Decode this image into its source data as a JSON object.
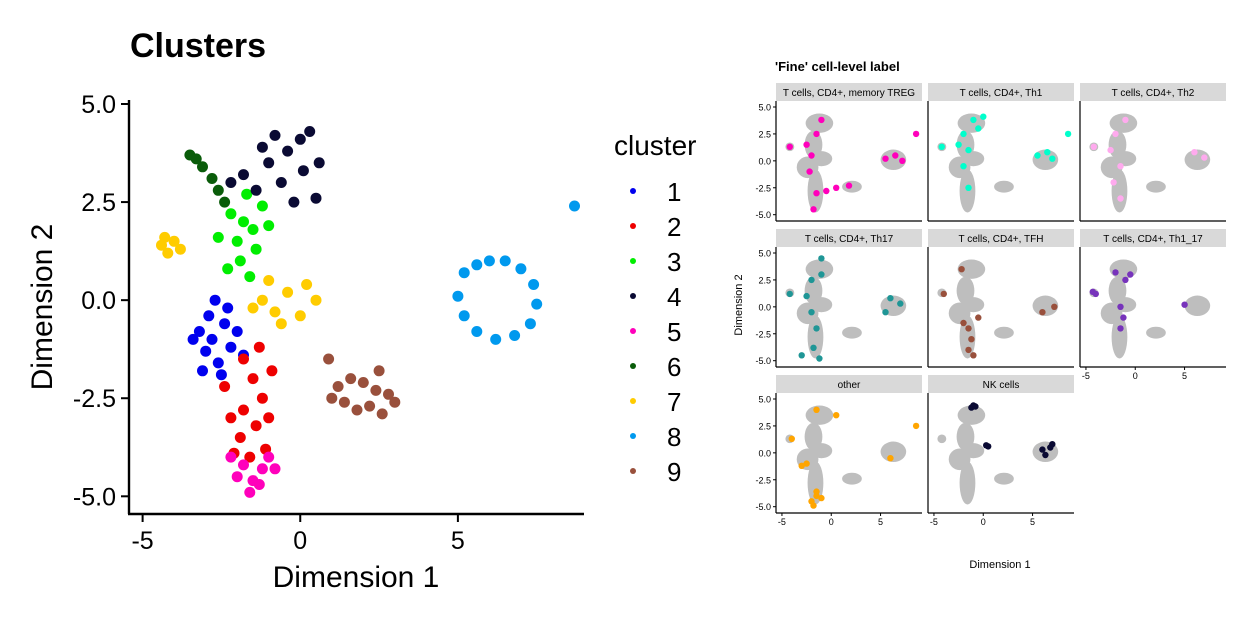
{
  "chart_data": [
    {
      "type": "scatter",
      "title": "Clusters",
      "xlabel": "Dimension 1",
      "ylabel": "Dimension 2",
      "xlim": [
        -5.4,
        9.0
      ],
      "ylim": [
        -5.4,
        5.0
      ],
      "x_ticks": [
        -5,
        0,
        5
      ],
      "x_tick_labels": [
        "-5",
        "0",
        "5"
      ],
      "y_ticks": [
        -5.0,
        -2.5,
        0.0,
        2.5,
        5.0
      ],
      "y_tick_labels": [
        "-5.0",
        "-2.5",
        "0.0",
        "2.5",
        "5.0"
      ],
      "grid": false,
      "legend": {
        "title": "cluster",
        "placement": "right"
      },
      "series": [
        {
          "name": "1",
          "color": "#0000ee",
          "points": [
            [
              -3.2,
              -0.8
            ],
            [
              -2.8,
              -1.0
            ],
            [
              -2.4,
              -0.6
            ],
            [
              -3.0,
              -1.3
            ],
            [
              -2.6,
              -1.6
            ],
            [
              -2.2,
              -1.2
            ],
            [
              -2.9,
              -0.4
            ],
            [
              -2.3,
              -0.2
            ],
            [
              -3.4,
              -1.0
            ],
            [
              -2.0,
              -0.8
            ],
            [
              -2.5,
              -1.9
            ],
            [
              -3.1,
              -1.8
            ],
            [
              -1.8,
              -1.4
            ],
            [
              -2.7,
              0.0
            ]
          ]
        },
        {
          "name": "2",
          "color": "#ee0000",
          "points": [
            [
              -1.8,
              -1.5
            ],
            [
              -1.5,
              -2.0
            ],
            [
              -1.2,
              -2.5
            ],
            [
              -1.8,
              -2.8
            ],
            [
              -1.4,
              -3.2
            ],
            [
              -1.9,
              -3.5
            ],
            [
              -1.1,
              -3.8
            ],
            [
              -2.2,
              -3.0
            ],
            [
              -1.6,
              -4.0
            ],
            [
              -0.9,
              -1.8
            ],
            [
              -2.4,
              -2.2
            ],
            [
              -1.0,
              -3.0
            ],
            [
              -2.1,
              -3.9
            ],
            [
              -1.3,
              -1.2
            ]
          ]
        },
        {
          "name": "3",
          "color": "#00ee00",
          "points": [
            [
              -2.2,
              2.2
            ],
            [
              -1.8,
              2.0
            ],
            [
              -2.0,
              1.5
            ],
            [
              -1.5,
              1.8
            ],
            [
              -1.9,
              1.0
            ],
            [
              -1.4,
              1.3
            ],
            [
              -2.3,
              0.8
            ],
            [
              -1.6,
              0.6
            ],
            [
              -1.2,
              2.4
            ],
            [
              -2.6,
              1.6
            ],
            [
              -1.0,
              1.9
            ],
            [
              -1.7,
              2.7
            ]
          ]
        },
        {
          "name": "4",
          "color": "#0a0a33",
          "points": [
            [
              -1.8,
              3.2
            ],
            [
              -1.0,
              3.5
            ],
            [
              -0.4,
              3.8
            ],
            [
              0.0,
              4.1
            ],
            [
              0.3,
              4.3
            ],
            [
              -0.6,
              3.0
            ],
            [
              -1.4,
              2.8
            ],
            [
              0.1,
              3.3
            ],
            [
              0.5,
              2.6
            ],
            [
              -1.2,
              3.9
            ],
            [
              -0.2,
              2.5
            ],
            [
              -2.2,
              3.0
            ],
            [
              0.6,
              3.5
            ],
            [
              -0.8,
              4.2
            ]
          ]
        },
        {
          "name": "5",
          "color": "#ff00bb",
          "points": [
            [
              -1.8,
              -4.2
            ],
            [
              -1.5,
              -4.6
            ],
            [
              -1.2,
              -4.3
            ],
            [
              -2.0,
              -4.5
            ],
            [
              -1.6,
              -4.9
            ],
            [
              -1.0,
              -4.0
            ],
            [
              -2.2,
              -4.0
            ],
            [
              -1.3,
              -4.7
            ],
            [
              -0.8,
              -4.3
            ]
          ]
        },
        {
          "name": "6",
          "color": "#0a5c0a",
          "points": [
            [
              -3.5,
              3.7
            ],
            [
              -3.1,
              3.4
            ],
            [
              -2.8,
              3.1
            ],
            [
              -2.6,
              2.8
            ],
            [
              -3.3,
              3.6
            ],
            [
              -2.4,
              2.5
            ]
          ]
        },
        {
          "name": "7",
          "color": "#ffcc00",
          "points": [
            [
              -4.4,
              1.4
            ],
            [
              -4.2,
              1.2
            ],
            [
              -4.0,
              1.5
            ],
            [
              -3.8,
              1.3
            ],
            [
              -4.3,
              1.6
            ],
            [
              -1.2,
              0.0
            ],
            [
              -0.8,
              -0.3
            ],
            [
              -0.4,
              0.2
            ],
            [
              0.2,
              0.4
            ],
            [
              -1.5,
              -0.2
            ],
            [
              -0.6,
              -0.6
            ],
            [
              0.0,
              -0.4
            ],
            [
              0.5,
              0.0
            ],
            [
              -1.0,
              0.5
            ]
          ]
        },
        {
          "name": "8",
          "color": "#0099ee",
          "points": [
            [
              5.2,
              0.7
            ],
            [
              5.6,
              0.9
            ],
            [
              6.0,
              1.0
            ],
            [
              6.5,
              1.0
            ],
            [
              7.0,
              0.8
            ],
            [
              7.4,
              0.4
            ],
            [
              7.5,
              -0.1
            ],
            [
              7.3,
              -0.6
            ],
            [
              6.8,
              -0.9
            ],
            [
              6.2,
              -1.0
            ],
            [
              5.6,
              -0.8
            ],
            [
              5.2,
              -0.4
            ],
            [
              5.0,
              0.1
            ],
            [
              8.7,
              2.4
            ]
          ]
        },
        {
          "name": "9",
          "color": "#99503c",
          "points": [
            [
              1.2,
              -2.2
            ],
            [
              1.6,
              -2.0
            ],
            [
              2.0,
              -2.1
            ],
            [
              2.4,
              -2.3
            ],
            [
              2.8,
              -2.4
            ],
            [
              1.4,
              -2.6
            ],
            [
              1.8,
              -2.8
            ],
            [
              2.2,
              -2.7
            ],
            [
              2.6,
              -2.9
            ],
            [
              3.0,
              -2.6
            ],
            [
              0.9,
              -1.5
            ],
            [
              1.0,
              -2.5
            ],
            [
              2.5,
              -1.8
            ]
          ]
        }
      ]
    },
    {
      "type": "scatter",
      "title": "'Fine' cell-level label",
      "xlabel": "Dimension 1",
      "ylabel": "Dimension 2",
      "xlim": [
        -5.4,
        9.0
      ],
      "ylim": [
        -5.4,
        5.0
      ],
      "x_ticks": [
        -5,
        0,
        5
      ],
      "x_tick_labels": [
        "-5",
        "0",
        "5"
      ],
      "y_ticks": [
        -5.0,
        -2.5,
        0.0,
        2.5,
        5.0
      ],
      "y_tick_labels": [
        "-5.0",
        "-2.5",
        "0.0",
        "2.5",
        "5.0"
      ],
      "background_color": "#bebebe",
      "panels": [
        {
          "label": "T cells, CD4+, memory TREG",
          "color": "#ff00bb",
          "points": [
            [
              -2.5,
              1.5
            ],
            [
              -2.0,
              0.5
            ],
            [
              -1.5,
              2.5
            ],
            [
              -1.0,
              3.8
            ],
            [
              -2.2,
              -1.0
            ],
            [
              -1.5,
              -3.0
            ],
            [
              -1.8,
              -4.5
            ],
            [
              -4.2,
              1.3
            ],
            [
              -0.5,
              -2.8
            ],
            [
              0.5,
              -2.5
            ],
            [
              1.8,
              -2.3
            ],
            [
              5.5,
              0.2
            ],
            [
              6.5,
              0.5
            ],
            [
              7.2,
              0.0
            ],
            [
              8.6,
              2.5
            ]
          ]
        },
        {
          "label": "T cells, CD4+, Th1",
          "color": "#00ffcc",
          "points": [
            [
              -2.0,
              2.5
            ],
            [
              -1.0,
              3.8
            ],
            [
              0.0,
              4.1
            ],
            [
              -2.5,
              1.5
            ],
            [
              -1.5,
              1.0
            ],
            [
              -0.5,
              3.0
            ],
            [
              -4.2,
              1.3
            ],
            [
              -2.0,
              -0.5
            ],
            [
              -1.5,
              -2.5
            ],
            [
              5.5,
              0.5
            ],
            [
              6.5,
              0.8
            ],
            [
              7.0,
              0.2
            ],
            [
              8.6,
              2.5
            ]
          ]
        },
        {
          "label": "T cells, CD4+, Th2",
          "color": "#ffaaee",
          "points": [
            [
              -2.0,
              2.5
            ],
            [
              -1.0,
              3.8
            ],
            [
              -2.5,
              1.0
            ],
            [
              -1.5,
              -0.5
            ],
            [
              -2.2,
              -2.0
            ],
            [
              -1.5,
              -3.5
            ],
            [
              -4.2,
              1.3
            ],
            [
              6.0,
              0.8
            ],
            [
              7.0,
              0.3
            ]
          ]
        },
        {
          "label": "T cells, CD4+, Th17",
          "color": "#1f9696",
          "points": [
            [
              -2.0,
              2.5
            ],
            [
              -1.0,
              3.0
            ],
            [
              -2.5,
              1.0
            ],
            [
              -2.0,
              -0.5
            ],
            [
              -1.5,
              -2.0
            ],
            [
              -1.8,
              -3.8
            ],
            [
              -1.2,
              -4.8
            ],
            [
              -4.2,
              1.2
            ],
            [
              6.0,
              0.8
            ],
            [
              7.0,
              0.3
            ],
            [
              5.5,
              -0.5
            ],
            [
              -3.0,
              -4.5
            ],
            [
              -1.0,
              4.5
            ]
          ]
        },
        {
          "label": "T cells, CD4+, TFH",
          "color": "#99503c",
          "points": [
            [
              -1.5,
              -2.0
            ],
            [
              -1.2,
              -3.0
            ],
            [
              -1.5,
              -4.0
            ],
            [
              -1.0,
              -4.5
            ],
            [
              -2.0,
              -1.5
            ],
            [
              -0.5,
              -1.0
            ],
            [
              -4.0,
              1.2
            ],
            [
              6.0,
              -0.5
            ],
            [
              7.2,
              0.0
            ],
            [
              -2.2,
              3.5
            ]
          ]
        },
        {
          "label": "T cells, CD4+, Th1_17",
          "color": "#7733bb",
          "points": [
            [
              -4.3,
              1.4
            ],
            [
              -4.0,
              1.2
            ],
            [
              -1.0,
              2.5
            ],
            [
              -0.5,
              3.0
            ],
            [
              -1.5,
              0.0
            ],
            [
              -1.2,
              -1.0
            ],
            [
              -1.5,
              -2.0
            ],
            [
              5.0,
              0.2
            ],
            [
              -2.0,
              3.2
            ]
          ]
        },
        {
          "label": "other",
          "color": "#ffa500",
          "points": [
            [
              -4.0,
              1.3
            ],
            [
              -1.5,
              -4.0
            ],
            [
              -2.0,
              -4.5
            ],
            [
              -1.0,
              -4.2
            ],
            [
              -1.5,
              -3.6
            ],
            [
              -2.5,
              -1.0
            ],
            [
              -3.0,
              -1.2
            ],
            [
              0.5,
              3.5
            ],
            [
              -1.5,
              4.0
            ],
            [
              6.0,
              -0.5
            ],
            [
              8.6,
              2.5
            ],
            [
              -1.8,
              -4.9
            ]
          ]
        },
        {
          "label": "NK cells",
          "color": "#0a0a33",
          "points": [
            [
              -1.2,
              4.2
            ],
            [
              -1.0,
              4.4
            ],
            [
              -0.8,
              4.3
            ],
            [
              0.3,
              0.7
            ],
            [
              0.5,
              0.6
            ],
            [
              6.0,
              0.3
            ],
            [
              6.3,
              -0.2
            ],
            [
              6.8,
              0.5
            ],
            [
              7.0,
              0.8
            ]
          ]
        }
      ]
    }
  ]
}
